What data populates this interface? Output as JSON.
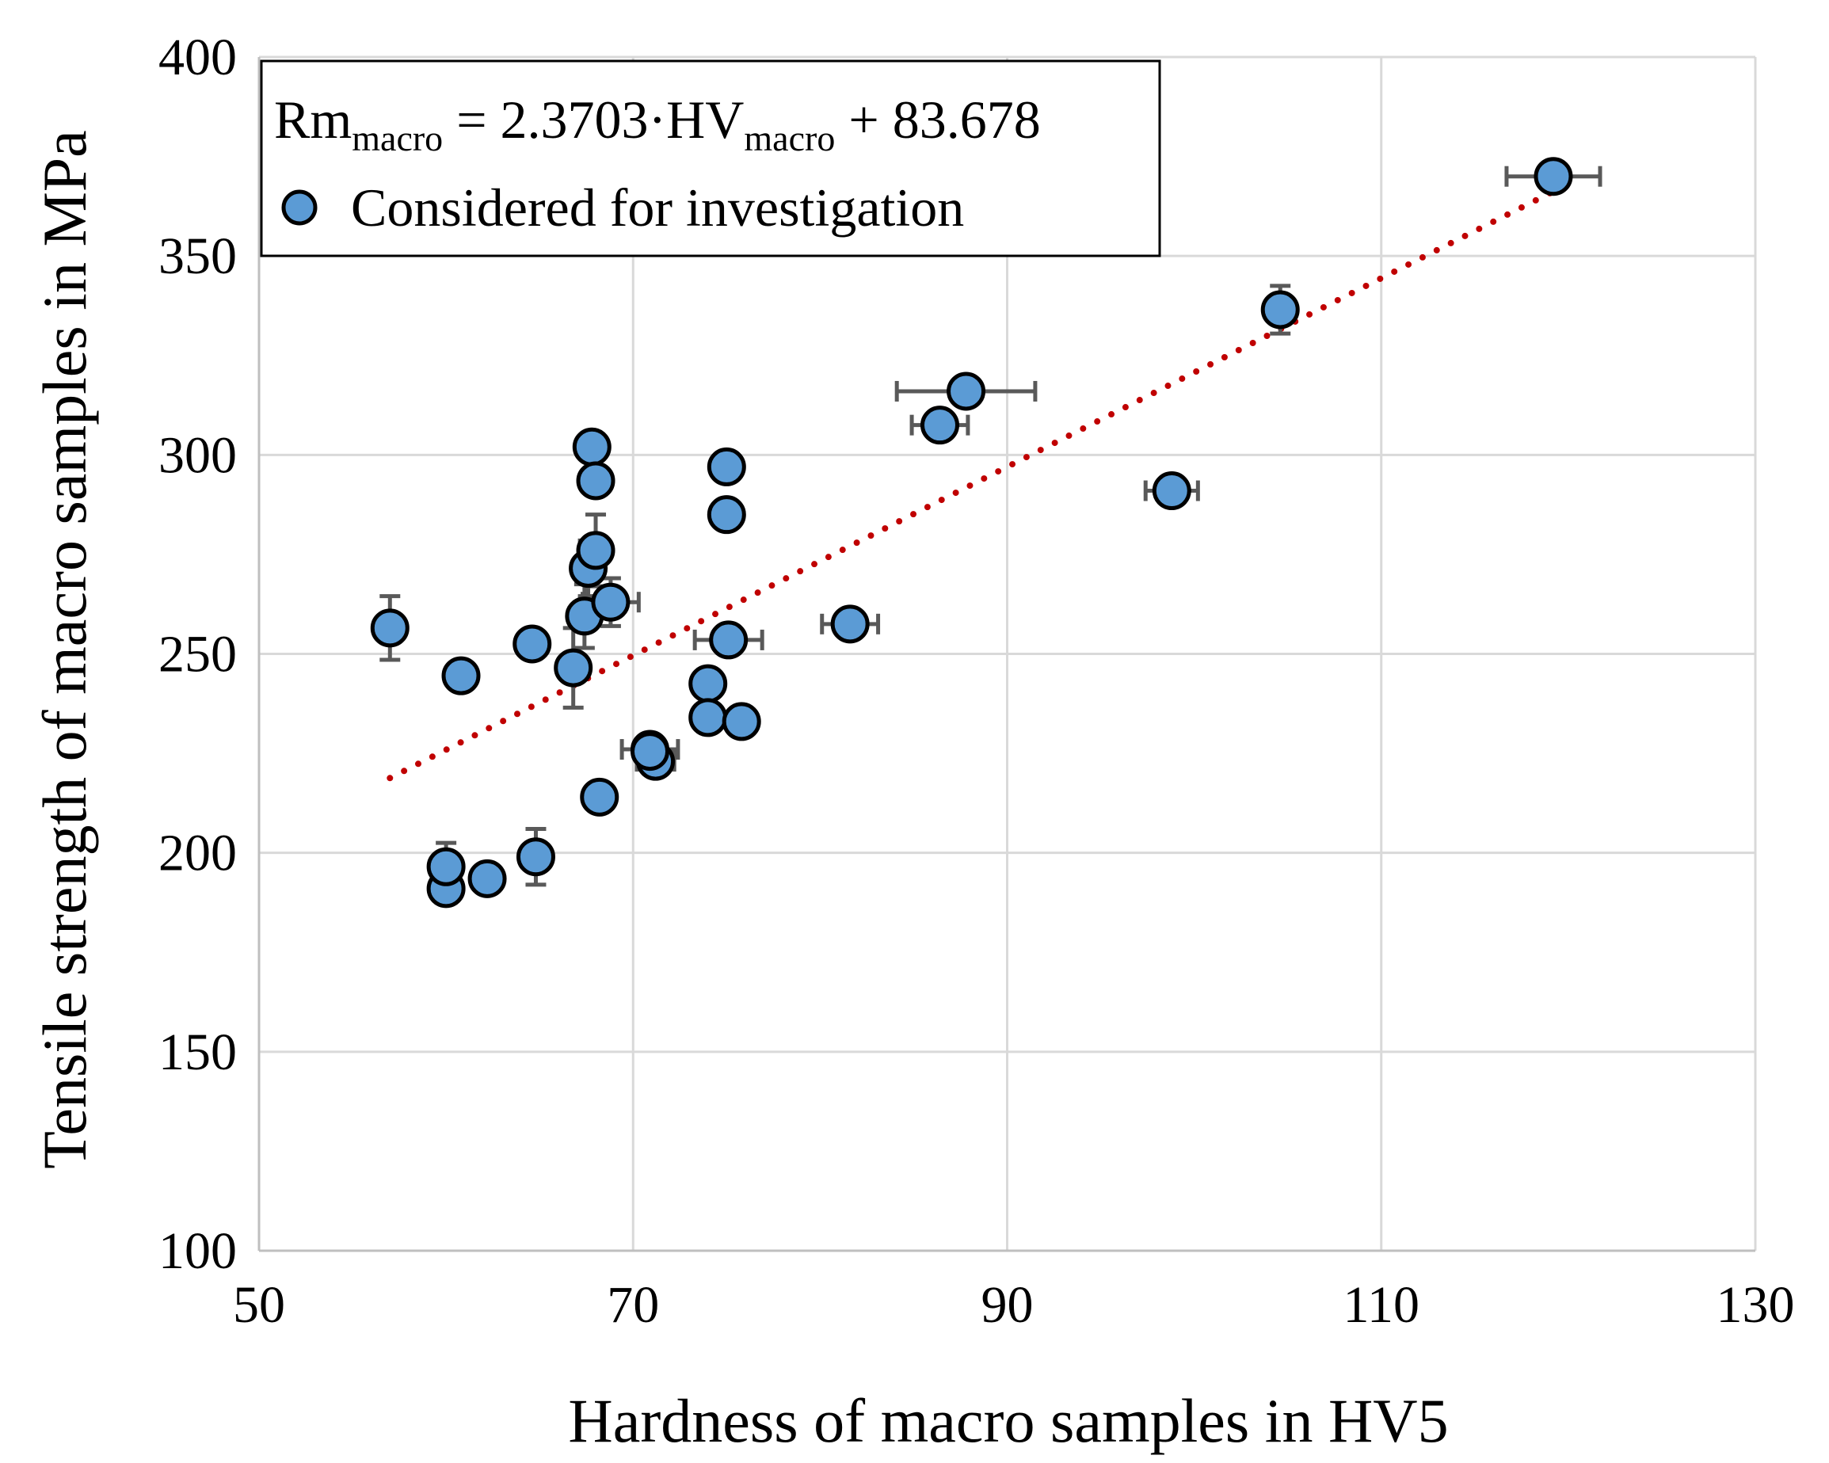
{
  "chart_data": {
    "type": "scatter",
    "xlabel": "Hardness of macro samples in HV5",
    "ylabel": "Tensile strength of macro samples in MPa",
    "xlim": [
      50,
      130
    ],
    "ylim": [
      100,
      400
    ],
    "xticks": [
      "50",
      "70",
      "90",
      "110",
      "130"
    ],
    "yticks": [
      "100",
      "150",
      "200",
      "250",
      "300",
      "350",
      "400"
    ],
    "grid": true,
    "legend_position": "top-left",
    "series": [
      {
        "name": "Considered for investigation",
        "color": "#5b9bd5",
        "points": [
          {
            "x": 57.0,
            "y": 256.5,
            "xerr": 0,
            "yerr": 8
          },
          {
            "x": 60.0,
            "y": 191.0,
            "xerr": 0,
            "yerr": 0
          },
          {
            "x": 60.0,
            "y": 196.5,
            "xerr": 0,
            "yerr": 6
          },
          {
            "x": 60.8,
            "y": 244.5,
            "xerr": 0,
            "yerr": 0
          },
          {
            "x": 62.2,
            "y": 193.5,
            "xerr": 0,
            "yerr": 0
          },
          {
            "x": 64.6,
            "y": 252.5,
            "xerr": 0,
            "yerr": 0
          },
          {
            "x": 64.8,
            "y": 199.0,
            "xerr": 0,
            "yerr": 7
          },
          {
            "x": 66.8,
            "y": 246.5,
            "xerr": 0,
            "yerr": 10
          },
          {
            "x": 67.4,
            "y": 259.5,
            "xerr": 0,
            "yerr": 8
          },
          {
            "x": 67.6,
            "y": 271.5,
            "xerr": 0,
            "yerr": 7
          },
          {
            "x": 67.8,
            "y": 302.0,
            "xerr": 0,
            "yerr": 0
          },
          {
            "x": 68.0,
            "y": 293.5,
            "xerr": 0,
            "yerr": 0
          },
          {
            "x": 68.0,
            "y": 276.0,
            "xerr": 0,
            "yerr": 9
          },
          {
            "x": 68.2,
            "y": 214.0,
            "xerr": 0,
            "yerr": 0
          },
          {
            "x": 68.8,
            "y": 263.0,
            "xerr": 1.5,
            "yerr": 6
          },
          {
            "x": 70.9,
            "y": 226.0,
            "xerr": 1.5,
            "yerr": 0
          },
          {
            "x": 71.2,
            "y": 223.0,
            "xerr": 1.0,
            "yerr": 0
          },
          {
            "x": 70.9,
            "y": 225.5,
            "xerr": 0,
            "yerr": 0
          },
          {
            "x": 74.0,
            "y": 242.5,
            "xerr": 0,
            "yerr": 0
          },
          {
            "x": 74.0,
            "y": 234.0,
            "xerr": 0,
            "yerr": 0
          },
          {
            "x": 75.0,
            "y": 285.0,
            "xerr": 0,
            "yerr": 0
          },
          {
            "x": 75.0,
            "y": 297.0,
            "xerr": 0,
            "yerr": 0
          },
          {
            "x": 75.1,
            "y": 253.5,
            "xerr": 1.8,
            "yerr": 0
          },
          {
            "x": 75.8,
            "y": 233.0,
            "xerr": 0,
            "yerr": 0
          },
          {
            "x": 81.6,
            "y": 257.5,
            "xerr": 1.5,
            "yerr": 0
          },
          {
            "x": 86.4,
            "y": 307.5,
            "xerr": 1.5,
            "yerr": 0
          },
          {
            "x": 87.8,
            "y": 316.0,
            "xerr": 3.7,
            "yerr": 0
          },
          {
            "x": 98.8,
            "y": 291.0,
            "xerr": 1.4,
            "yerr": 0
          },
          {
            "x": 104.6,
            "y": 336.5,
            "xerr": 0,
            "yerr": 6
          },
          {
            "x": 119.2,
            "y": 370.0,
            "xerr": 2.5,
            "yerr": 0
          }
        ]
      }
    ],
    "trendline": {
      "equation_parts": {
        "lhs": "Rm",
        "lhs_sub": "macro",
        "mid": " = 2.3703·HV",
        "mid_sub": "macro",
        "tail": " + 83.678"
      },
      "slope": 2.3703,
      "intercept": 83.678,
      "x_range": [
        57,
        119.2
      ],
      "color": "#c00000",
      "style": "dotted"
    }
  }
}
